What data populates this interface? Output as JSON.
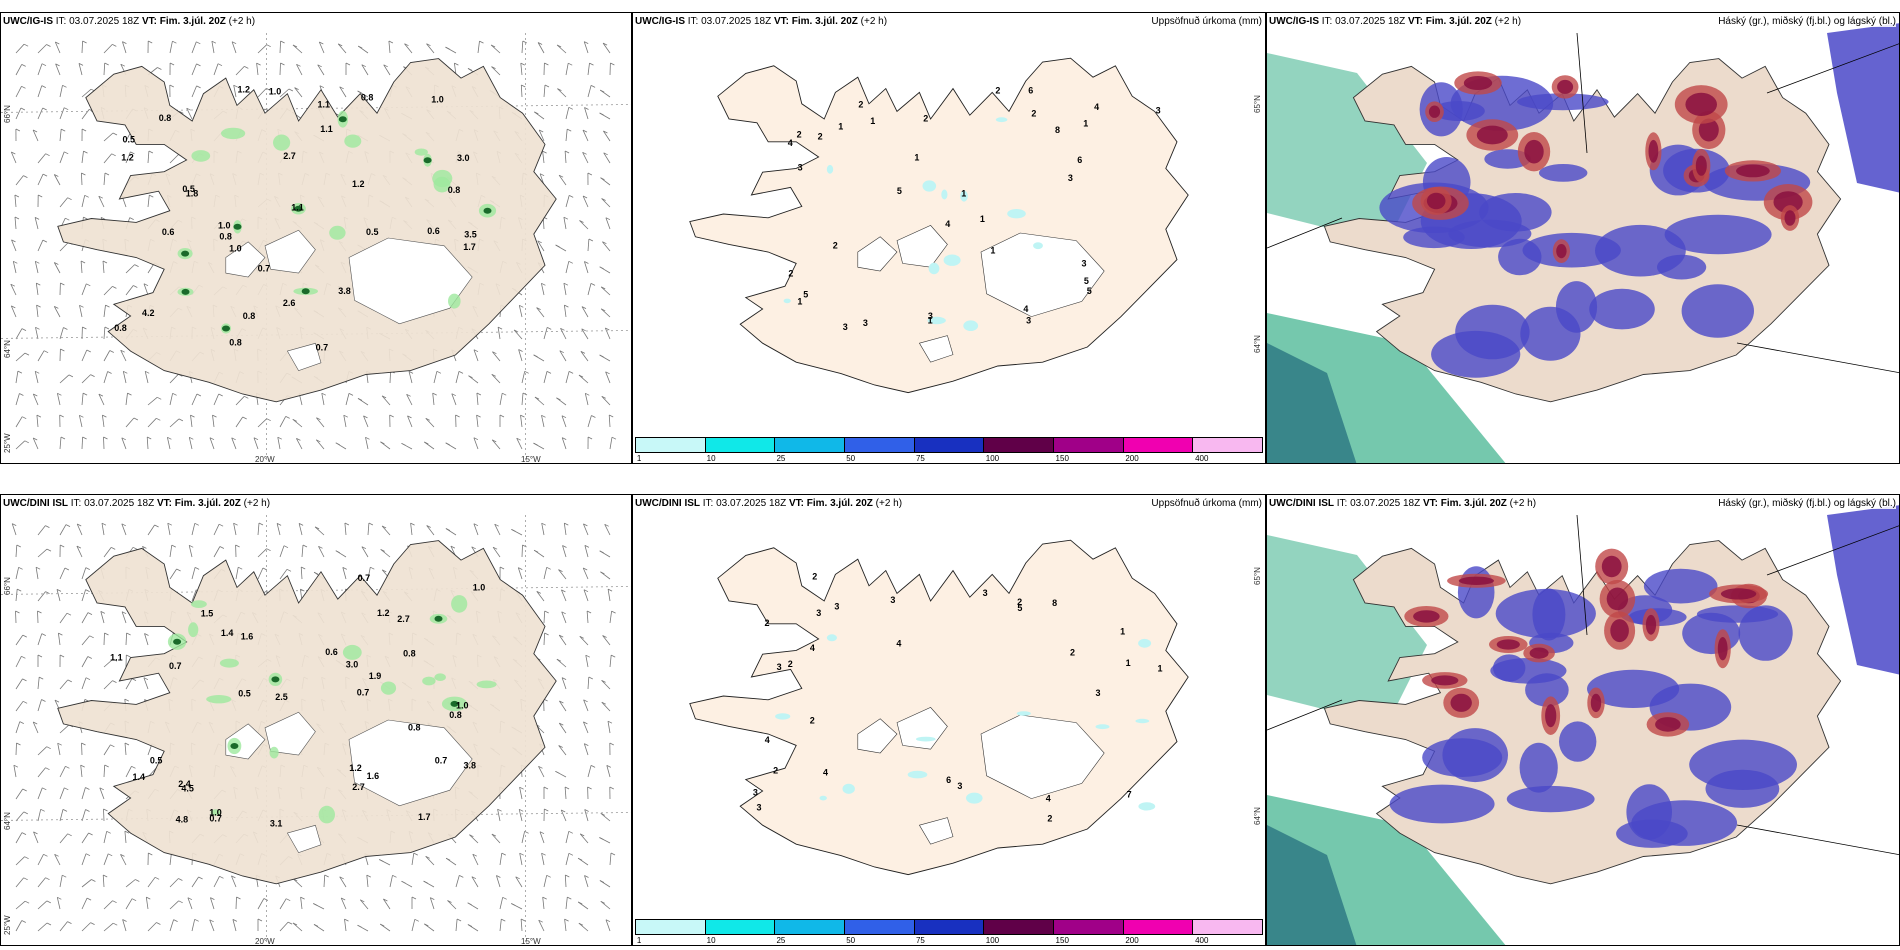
{
  "rows": [
    {
      "model": "UWC/IG-IS",
      "it_label": "IT:",
      "it_value": "03.07.2025 18Z",
      "vt_label": "VT:",
      "vt_value": "Fim. 3.júl. 20Z",
      "lead": "(+2 h)",
      "wind_labels": [
        "0.7",
        "0.8",
        "0.6",
        "2.7",
        "0.6",
        "1.0",
        "0.5",
        "4.2",
        "3.0",
        "0.8",
        "2.6",
        "0.8",
        "1.7",
        "3.8",
        "1.8",
        "1.2",
        "1.0",
        "1.1",
        "1.2",
        "0.7",
        "1.0",
        "0.8",
        "0.8",
        "0.5",
        "1.2",
        "1.1",
        "3.5",
        "0.5",
        "1.1",
        "1.0",
        "0.8",
        "0.8"
      ],
      "precip_labels": [
        "2",
        "6",
        "3",
        "4",
        "1",
        "1",
        "5",
        "4",
        "2",
        "8",
        "5",
        "6",
        "2",
        "3",
        "3",
        "1",
        "3",
        "1",
        "2",
        "1",
        "2",
        "3",
        "5",
        "4",
        "1",
        "3",
        "4",
        "2",
        "1",
        "1",
        "2",
        "1",
        "5",
        "3",
        "2",
        "3"
      ]
    },
    {
      "model": "UWC/DINI ISL",
      "it_label": "IT:",
      "it_value": "03.07.2025 18Z",
      "vt_label": "VT:",
      "vt_value": "Fim. 3.júl. 20Z",
      "lead": "(+2 h)",
      "wind_labels": [
        "0.8",
        "3.0",
        "0.7",
        "0.5",
        "0.6",
        "0.7",
        "2.7",
        "2.4",
        "1.9",
        "4.8",
        "2.7",
        "3.8",
        "1.5",
        "1.6",
        "1.0",
        "4.5",
        "1.0",
        "0.5",
        "1.6",
        "1.7",
        "0.7",
        "1.4",
        "1.2",
        "1.1",
        "1.2",
        "0.7",
        "3.1",
        "2.5",
        "0.8",
        "1.4",
        "0.8",
        "0.7",
        "1.0"
      ],
      "precip_labels": [
        "3",
        "1",
        "2",
        "2",
        "2",
        "3",
        "4",
        "2",
        "2",
        "2",
        "4",
        "5",
        "6",
        "2",
        "4",
        "3",
        "3",
        "4",
        "1",
        "8",
        "3",
        "2",
        "3",
        "3",
        "1",
        "4",
        "7",
        "3",
        "3"
      ]
    }
  ],
  "precip_title": "Uppsöfnuð úrkoma (mm)",
  "cloud_title": "Háský (gr.), miðský (fj.bl.) og lágský (bl.)",
  "legend_ticks": [
    "1",
    "10",
    "25",
    "50",
    "75",
    "100",
    "150",
    "200",
    "400"
  ],
  "legend_colors": [
    "#c8f8f8",
    "#10e8e8",
    "#10b8e8",
    "#3060e8",
    "#1830c0",
    "#600048",
    "#a00088",
    "#f000b0",
    "#f8b8f0"
  ],
  "axis_labels": {
    "lat66": "66°N",
    "lat64": "64°N",
    "lon25": "25°W",
    "lon20": "20°W",
    "lon15": "15°W",
    "lat65_precip": "65°N",
    "lat64_precip": "64°N"
  },
  "colors": {
    "land_wind": "#efe2d2",
    "land_precip": "#fdf0e3",
    "land_cloud": "#ecdbcc",
    "glacier": "#ffffff",
    "cloud_blue": "#4a48c8",
    "cloud_red": "#c04848",
    "cloud_dark": "#8a1040",
    "cloud_green": "#3ab08a"
  }
}
